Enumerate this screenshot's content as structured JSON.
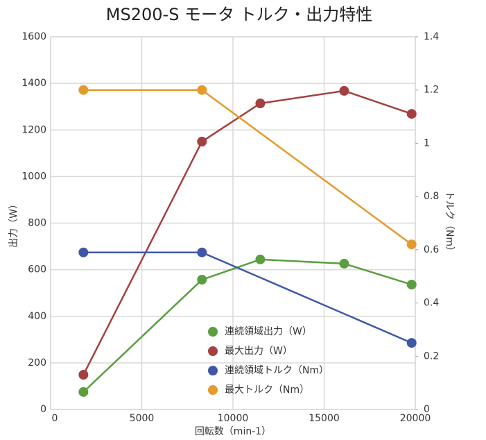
{
  "chart_data": {
    "type": "line",
    "title": "MS200-S モータ トルク・出力特性",
    "x_label": "回転数（min-1）",
    "y_label": "出力（W）",
    "y2_label": "トルク（Nm）",
    "x": [
      1800,
      8300,
      11500,
      16100,
      19800
    ],
    "series": [
      {
        "name": "連続領域出力（W）",
        "color": "#5a9e3e",
        "values": [
          75,
          557,
          644,
          626,
          536
        ]
      },
      {
        "name": "最大出力（W）",
        "color": "#a34140",
        "values": [
          149,
          1150,
          1314,
          1368,
          1269
        ]
      },
      {
        "name": "連続領域トルク（Nm）",
        "color": "#3f57a8",
        "axis": "y2",
        "values": [
          0.59,
          0.59,
          null,
          null,
          0.25
        ]
      },
      {
        "name": "最大トルク（Nm）",
        "color": "#e39b2c",
        "axis": "y2",
        "values": [
          1.2,
          1.2,
          null,
          null,
          0.62
        ]
      }
    ],
    "xlim": [
      0,
      20000
    ],
    "xticks": [
      0,
      5000,
      10000,
      15000,
      20000
    ],
    "ylim": [
      0,
      1600
    ],
    "yticks": [
      0,
      200,
      400,
      600,
      800,
      1000,
      1200,
      1400,
      1600
    ],
    "y2lim": [
      0,
      1.4
    ],
    "y2ticks": [
      0,
      0.2,
      0.4,
      0.6,
      0.8,
      1,
      1.2,
      1.4
    ],
    "grid": true
  }
}
